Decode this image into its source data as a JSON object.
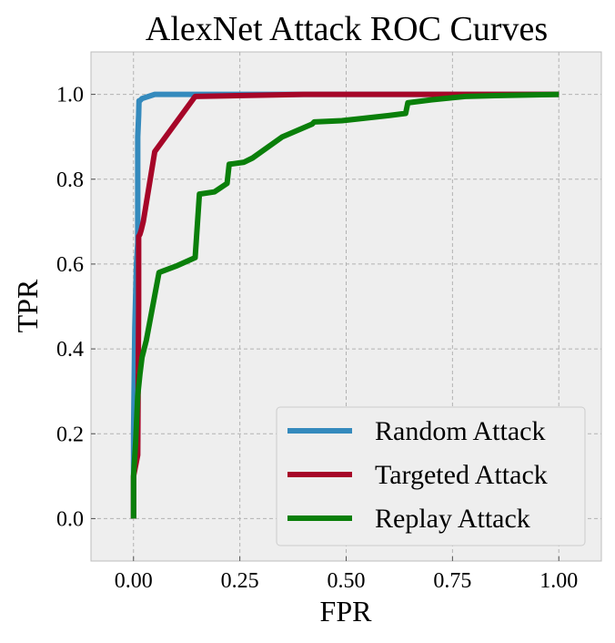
{
  "chart_data": {
    "type": "line",
    "title": "AlexNet Attack ROC Curves",
    "xlabel": "FPR",
    "ylabel": "TPR",
    "xlim": [
      -0.1,
      1.1
    ],
    "ylim": [
      -0.1,
      1.1
    ],
    "xticks": [
      0.0,
      0.25,
      0.5,
      0.75,
      1.0
    ],
    "xtick_labels": [
      "0.00",
      "0.25",
      "0.50",
      "0.75",
      "1.00"
    ],
    "yticks": [
      0.0,
      0.2,
      0.4,
      0.6,
      0.8,
      1.0
    ],
    "ytick_labels": [
      "0.0",
      "0.2",
      "0.4",
      "0.6",
      "0.8",
      "1.0"
    ],
    "grid": true,
    "legend_position": "lower-right",
    "series": [
      {
        "name": "Random Attack",
        "color": "#348abd",
        "x": [
          0.0,
          0.0,
          0.003,
          0.007,
          0.01,
          0.01,
          0.012,
          0.013,
          0.015,
          0.02,
          0.05,
          0.15,
          0.4,
          1.0
        ],
        "y": [
          0.0,
          0.2,
          0.45,
          0.6,
          0.65,
          0.9,
          0.95,
          0.985,
          0.985,
          0.99,
          1.0,
          1.0,
          1.0,
          1.0
        ]
      },
      {
        "name": "Targeted Attack",
        "color": "#a60628",
        "x": [
          0.0,
          0.0,
          0.01,
          0.012,
          0.012,
          0.015,
          0.018,
          0.023,
          0.05,
          0.145,
          0.4,
          1.0
        ],
        "y": [
          0.0,
          0.1,
          0.15,
          0.5,
          0.665,
          0.67,
          0.68,
          0.7,
          0.865,
          0.995,
          1.0,
          1.0
        ]
      },
      {
        "name": "Replay Attack",
        "color": "#0a7f0a",
        "x": [
          0.0,
          0.0,
          0.005,
          0.01,
          0.015,
          0.02,
          0.03,
          0.06,
          0.1,
          0.145,
          0.155,
          0.19,
          0.22,
          0.225,
          0.26,
          0.28,
          0.35,
          0.42,
          0.425,
          0.49,
          0.6,
          0.64,
          0.645,
          0.7,
          0.78,
          0.85,
          1.0
        ],
        "y": [
          0.0,
          0.1,
          0.18,
          0.29,
          0.34,
          0.38,
          0.42,
          0.58,
          0.595,
          0.615,
          0.765,
          0.77,
          0.79,
          0.835,
          0.84,
          0.85,
          0.9,
          0.93,
          0.935,
          0.938,
          0.95,
          0.955,
          0.98,
          0.987,
          0.995,
          0.997,
          1.0
        ]
      }
    ]
  }
}
